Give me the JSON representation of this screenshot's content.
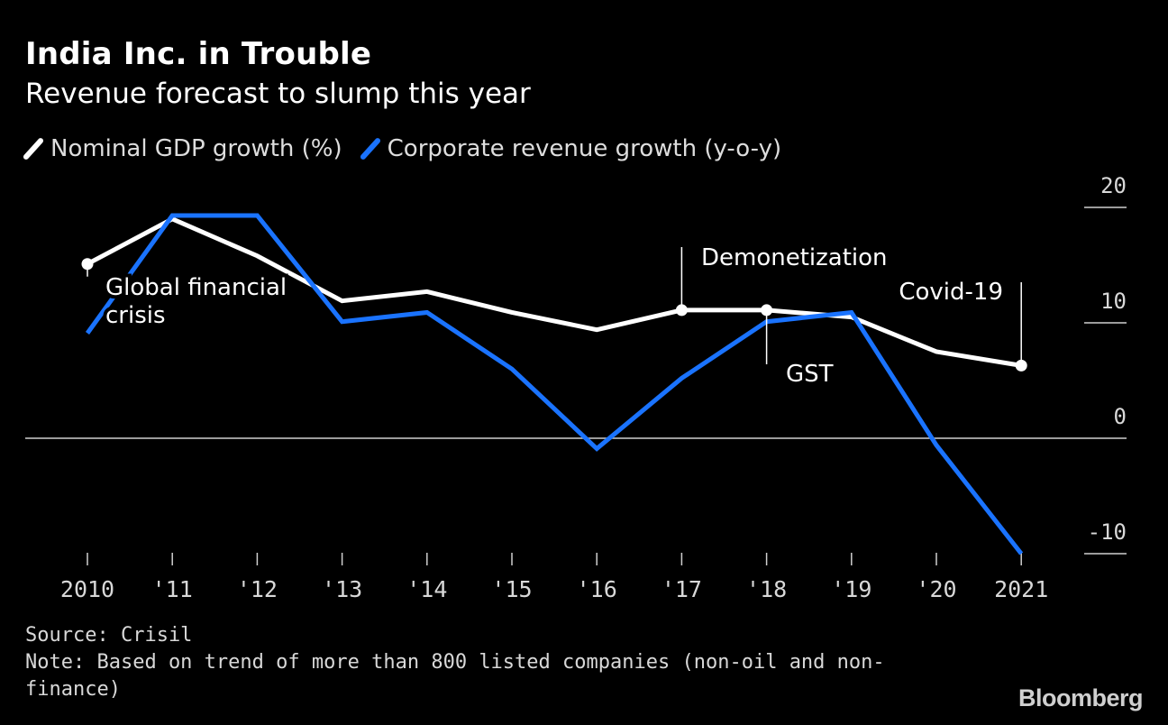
{
  "title": "India Inc. in Trouble",
  "subtitle": "Revenue forecast to slump this year",
  "legend": [
    {
      "label": "Nominal GDP growth (%)",
      "color": "#ffffff"
    },
    {
      "label": "Corporate revenue growth (y-o-y)",
      "color": "#1a73ff"
    }
  ],
  "footer": {
    "source": "Source: Crisil",
    "note": "Note: Based on trend of more than 800 listed companies (non-oil and non-finance)"
  },
  "logo": "Bloomberg",
  "chart_data": {
    "type": "line",
    "x": [
      2010,
      2011,
      2012,
      2013,
      2014,
      2015,
      2016,
      2017,
      2018,
      2019,
      2020,
      2021
    ],
    "x_tick_labels": [
      "2010",
      "'11",
      "'12",
      "'13",
      "'14",
      "'15",
      "'16",
      "'17",
      "'18",
      "'19",
      "'20",
      "2021"
    ],
    "ylim": [
      -10,
      20
    ],
    "y_ticks": [
      20,
      10,
      0,
      -10
    ],
    "y_axis_position": "right",
    "series": [
      {
        "name": "Nominal GDP growth (%)",
        "color": "#ffffff",
        "values": [
          15.1,
          19.0,
          15.8,
          11.9,
          12.7,
          10.9,
          9.4,
          11.1,
          11.1,
          10.5,
          7.5,
          6.3
        ]
      },
      {
        "name": "Corporate revenue growth (y-o-y)",
        "color": "#1a73ff",
        "values": [
          9.1,
          19.3,
          19.3,
          10.1,
          10.9,
          6.0,
          -0.9,
          5.2,
          10.1,
          10.9,
          -0.6,
          -10.0
        ]
      }
    ],
    "annotations": [
      {
        "text": "Global financial crisis",
        "x": 2010,
        "series": 0
      },
      {
        "text": "Demonetization",
        "x": 2017,
        "series": 0
      },
      {
        "text": "GST",
        "x": 2018,
        "series": 0
      },
      {
        "text": "Covid-19",
        "x": 2021,
        "series": 0
      }
    ]
  }
}
